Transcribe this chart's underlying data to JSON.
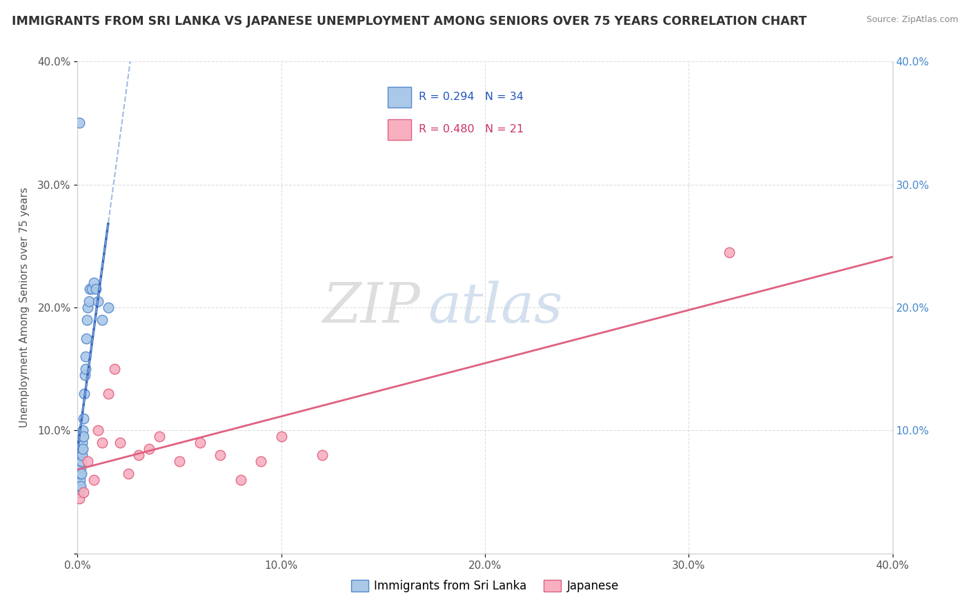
{
  "title": "IMMIGRANTS FROM SRI LANKA VS JAPANESE UNEMPLOYMENT AMONG SENIORS OVER 75 YEARS CORRELATION CHART",
  "source": "Source: ZipAtlas.com",
  "ylabel": "Unemployment Among Seniors over 75 years",
  "xlim": [
    0.0,
    0.4
  ],
  "ylim": [
    0.0,
    0.4
  ],
  "xticks": [
    0.0,
    0.1,
    0.2,
    0.3,
    0.4
  ],
  "yticks": [
    0.0,
    0.1,
    0.2,
    0.3,
    0.4
  ],
  "xticklabels": [
    "0.0%",
    "10.0%",
    "20.0%",
    "30.0%",
    "40.0%"
  ],
  "yticklabels": [
    "",
    "10.0%",
    "20.0%",
    "30.0%",
    "40.0%"
  ],
  "right_yticklabels": [
    "",
    "10.0%",
    "20.0%",
    "30.0%",
    "40.0%"
  ],
  "series1_color": "#aac8e8",
  "series1_edge": "#5588cc",
  "series1_line_color": "#3366bb",
  "series2_color": "#f8b0c0",
  "series2_edge": "#e06080",
  "series2_line_color": "#e06080",
  "R1": 0.294,
  "N1": 34,
  "R2": 0.48,
  "N2": 21,
  "watermark_ZIP": "ZIP",
  "watermark_atlas": "atlas",
  "background_color": "#ffffff",
  "grid_color": "#dddddd",
  "series1_x": [
    0.0008,
    0.001,
    0.0012,
    0.0013,
    0.0015,
    0.0016,
    0.0017,
    0.0018,
    0.0019,
    0.002,
    0.0021,
    0.0022,
    0.0023,
    0.0024,
    0.0025,
    0.0026,
    0.0028,
    0.003,
    0.0032,
    0.0035,
    0.0038,
    0.004,
    0.0042,
    0.0045,
    0.005,
    0.0055,
    0.006,
    0.007,
    0.008,
    0.009,
    0.01,
    0.012,
    0.015,
    0.0008
  ],
  "series1_y": [
    0.05,
    0.055,
    0.06,
    0.065,
    0.055,
    0.07,
    0.075,
    0.065,
    0.08,
    0.075,
    0.085,
    0.08,
    0.09,
    0.085,
    0.095,
    0.1,
    0.095,
    0.11,
    0.13,
    0.145,
    0.15,
    0.16,
    0.175,
    0.19,
    0.2,
    0.205,
    0.215,
    0.215,
    0.22,
    0.215,
    0.205,
    0.19,
    0.2,
    0.35
  ],
  "series2_x": [
    0.001,
    0.003,
    0.005,
    0.008,
    0.01,
    0.012,
    0.015,
    0.018,
    0.021,
    0.025,
    0.03,
    0.035,
    0.04,
    0.05,
    0.06,
    0.07,
    0.08,
    0.09,
    0.1,
    0.12,
    0.32
  ],
  "series2_y": [
    0.045,
    0.05,
    0.075,
    0.06,
    0.1,
    0.09,
    0.13,
    0.15,
    0.09,
    0.065,
    0.08,
    0.085,
    0.095,
    0.075,
    0.09,
    0.08,
    0.06,
    0.075,
    0.095,
    0.08,
    0.245
  ],
  "legend_label1": "Immigrants from Sri Lanka",
  "legend_label2": "Japanese"
}
